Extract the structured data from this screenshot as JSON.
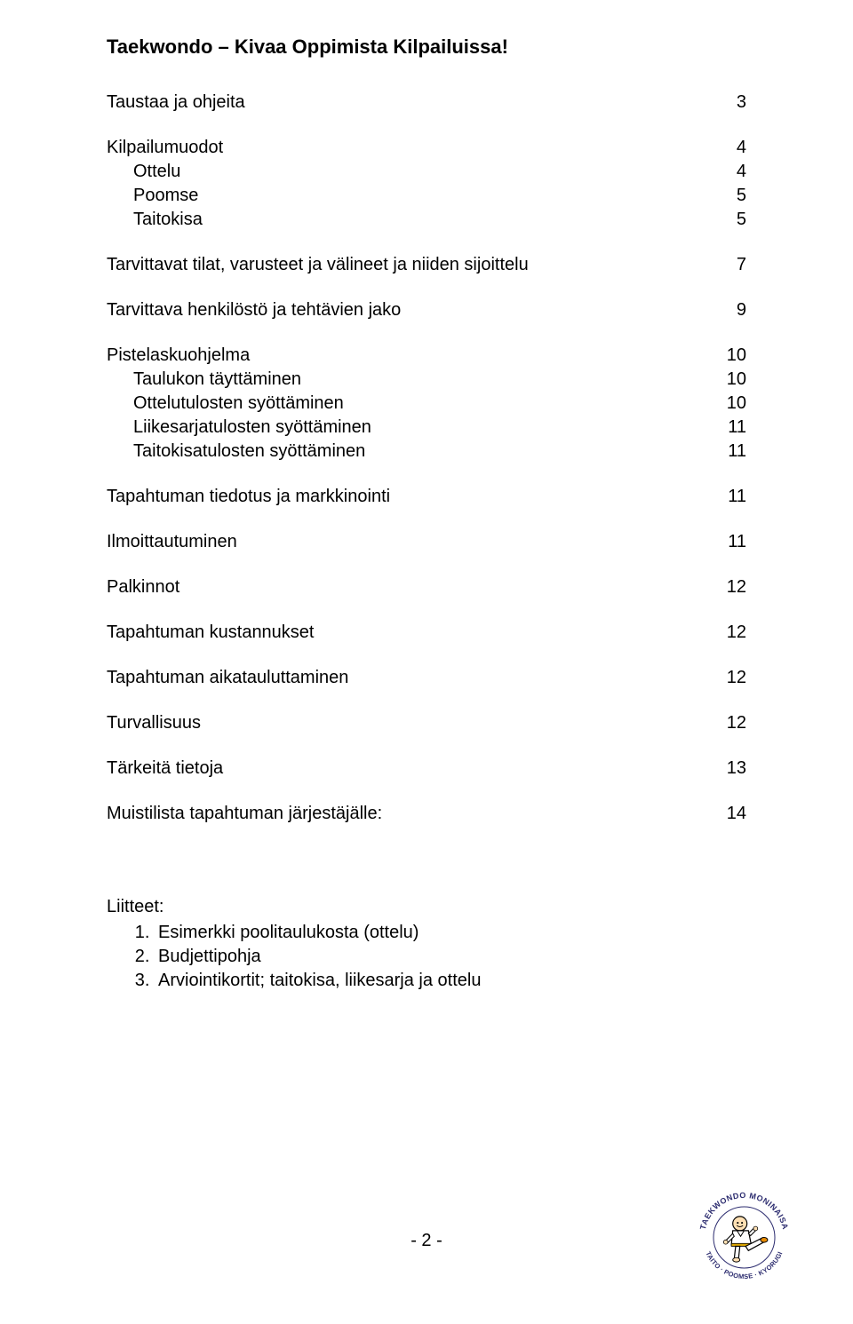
{
  "title": "Taekwondo – Kivaa Oppimista Kilpailuissa!",
  "toc": [
    {
      "label": "Taustaa ja ohjeita",
      "page": "3",
      "indent": false,
      "gap_before": false
    },
    {
      "label": "Kilpailumuodot",
      "page": "4",
      "indent": false,
      "gap_before": true
    },
    {
      "label": "Ottelu",
      "page": "4",
      "indent": true,
      "gap_before": false
    },
    {
      "label": "Poomse",
      "page": "5",
      "indent": true,
      "gap_before": false
    },
    {
      "label": "Taitokisa",
      "page": "5",
      "indent": true,
      "gap_before": false
    },
    {
      "label": "Tarvittavat tilat, varusteet ja välineet ja niiden sijoittelu",
      "page": "7",
      "indent": false,
      "gap_before": true
    },
    {
      "label": "Tarvittava henkilöstö ja tehtävien jako",
      "page": "9",
      "indent": false,
      "gap_before": true
    },
    {
      "label": "Pistelaskuohjelma",
      "page": "10",
      "indent": false,
      "gap_before": true
    },
    {
      "label": "Taulukon täyttäminen",
      "page": "10",
      "indent": true,
      "gap_before": false
    },
    {
      "label": "Ottelutulosten syöttäminen",
      "page": "10",
      "indent": true,
      "gap_before": false
    },
    {
      "label": "Liikesarjatulosten syöttäminen",
      "page": "11",
      "indent": true,
      "gap_before": false
    },
    {
      "label": "Taitokisatulosten syöttäminen",
      "page": "11",
      "indent": true,
      "gap_before": false
    },
    {
      "label": "Tapahtuman tiedotus ja markkinointi",
      "page": "11",
      "indent": false,
      "gap_before": true
    },
    {
      "label": "Ilmoittautuminen",
      "page": "11",
      "indent": false,
      "gap_before": true
    },
    {
      "label": "Palkinnot",
      "page": "12",
      "indent": false,
      "gap_before": true
    },
    {
      "label": "Tapahtuman kustannukset",
      "page": "12",
      "indent": false,
      "gap_before": true
    },
    {
      "label": "Tapahtuman aikatauluttaminen",
      "page": "12",
      "indent": false,
      "gap_before": true
    },
    {
      "label": "Turvallisuus",
      "page": "12",
      "indent": false,
      "gap_before": true
    },
    {
      "label": "Tärkeitä tietoja",
      "page": "13",
      "indent": false,
      "gap_before": true
    },
    {
      "label": "Muistilista tapahtuman järjestäjälle:",
      "page": "14",
      "indent": false,
      "gap_before": true
    }
  ],
  "attachments": {
    "heading": "Liitteet:",
    "items": [
      "Esimerkki poolitaulukosta (ottelu)",
      "Budjettipohja",
      "Arviointikortit; taitokisa, liikesarja ja ottelu"
    ]
  },
  "page_number": "- 2 -",
  "logo": {
    "top_text": "TAEKWONDO MONINAISA",
    "bottom_text": "TAITO · POOMSE · KYORUGI",
    "size": 105,
    "arc_color": "#2c2c6f",
    "fill_color": "#ffffff",
    "char_skin": "#ffe0b3",
    "char_outline": "#000000",
    "char_body": "#ffffff",
    "char_belt": "#d9a300",
    "char_foot": "#e68a00"
  }
}
